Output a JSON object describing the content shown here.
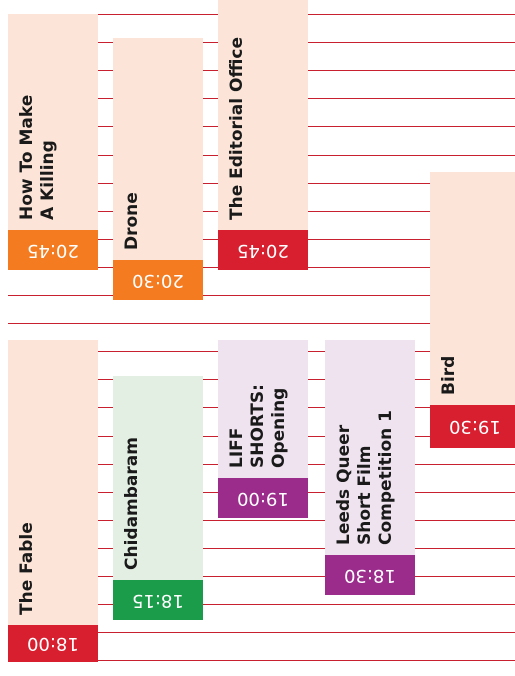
{
  "events": [
    {
      "title": [
        "How To Make",
        "A Killing"
      ],
      "time": "20:45"
    },
    {
      "title": [
        "Drone"
      ],
      "time": "20:30"
    },
    {
      "title": [
        "The Editorial Office"
      ],
      "time": "20:45"
    },
    {
      "title": [
        "Bird"
      ],
      "time": "19:30"
    },
    {
      "title": [
        "The Fable"
      ],
      "time": "18:00"
    },
    {
      "title": [
        "Chidambaram"
      ],
      "time": "18:15"
    },
    {
      "title": [
        "LIFF",
        "SHORTS:",
        "Opening"
      ],
      "time": "19:00"
    },
    {
      "title": [
        "Leeds Queer",
        "Short Film",
        "Competition 1"
      ],
      "time": "18:30"
    }
  ]
}
